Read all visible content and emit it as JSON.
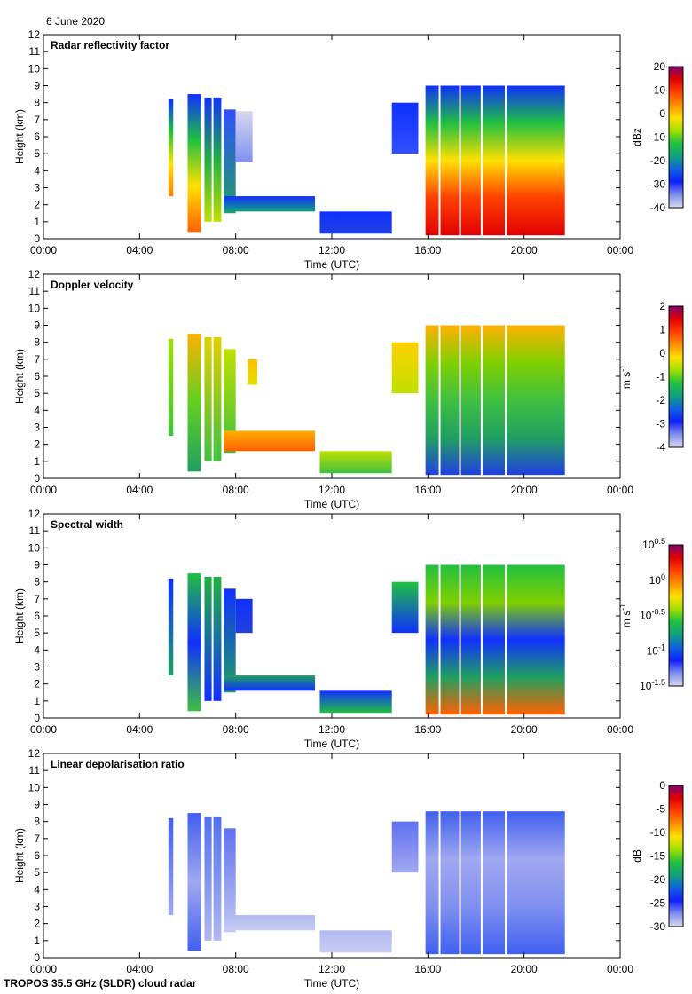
{
  "date_label": "6 June 2020",
  "footer": "TROPOS 35.5 GHz (SLDR) cloud radar",
  "chart_data": [
    {
      "type": "heatmap",
      "title": "Radar reflectivity factor",
      "xlabel": "Time (UTC)",
      "ylabel": "Height (km)",
      "xticks": [
        "00:00",
        "04:00",
        "08:00",
        "12:00",
        "16:00",
        "20:00",
        "00:00"
      ],
      "yticks": [
        "0",
        "1",
        "2",
        "3",
        "4",
        "5",
        "6",
        "7",
        "8",
        "9",
        "10",
        "11",
        "12"
      ],
      "xlim_hours": [
        0,
        24
      ],
      "ylim_km": [
        0,
        12
      ],
      "colorbar": {
        "label": "dBz",
        "ticks": [
          "20",
          "10",
          "0",
          "-10",
          "-20",
          "-30",
          "-40"
        ],
        "range": [
          -40,
          20
        ]
      },
      "echo_regions": [
        {
          "t": [
            5.2,
            5.4
          ],
          "h": [
            2.5,
            8.2
          ],
          "colors": [
            "#1030ff",
            "#20c040",
            "#ffe000",
            "#ff8000"
          ]
        },
        {
          "t": [
            6.0,
            6.6
          ],
          "h": [
            0.4,
            8.5
          ],
          "colors": [
            "#1030ff",
            "#20c040",
            "#ffe000",
            "#ff6000"
          ]
        },
        {
          "t": [
            6.7,
            7.4
          ],
          "h": [
            1.0,
            8.3
          ],
          "colors": [
            "#1030ff",
            "#20b040",
            "#c0e000"
          ]
        },
        {
          "t": [
            7.5,
            8.0
          ],
          "h": [
            1.5,
            7.6
          ],
          "colors": [
            "#3050ff",
            "#20a060"
          ]
        },
        {
          "t": [
            8.0,
            8.7
          ],
          "h": [
            4.5,
            7.5
          ],
          "colors": [
            "#d8d8f0",
            "#8090f0"
          ]
        },
        {
          "t": [
            7.5,
            11.3
          ],
          "h": [
            1.6,
            2.5
          ],
          "colors": [
            "#1030ff",
            "#10a080"
          ]
        },
        {
          "t": [
            11.5,
            14.5
          ],
          "h": [
            0.3,
            1.6
          ],
          "colors": [
            "#1030ff",
            "#2040e0"
          ]
        },
        {
          "t": [
            14.5,
            15.6
          ],
          "h": [
            5.0,
            8.0
          ],
          "colors": [
            "#1030ff",
            "#3050ff"
          ]
        },
        {
          "t": [
            15.9,
            21.7
          ],
          "h": [
            0.2,
            9.0
          ],
          "colors": [
            "#1030ff",
            "#20c040",
            "#ffe000",
            "#ff4000",
            "#e00000"
          ]
        }
      ]
    },
    {
      "type": "heatmap",
      "title": "Doppler velocity",
      "xlabel": "Time (UTC)",
      "ylabel": "Height (km)",
      "xticks": [
        "00:00",
        "04:00",
        "08:00",
        "12:00",
        "16:00",
        "20:00",
        "00:00"
      ],
      "yticks": [
        "0",
        "1",
        "2",
        "3",
        "4",
        "5",
        "6",
        "7",
        "8",
        "9",
        "10",
        "11",
        "12"
      ],
      "xlim_hours": [
        0,
        24
      ],
      "ylim_km": [
        0,
        12
      ],
      "colorbar": {
        "label": "m s-1",
        "label_main": "m s",
        "label_sup": "-1",
        "ticks": [
          "2",
          "1",
          "0",
          "-1",
          "-2",
          "-3",
          "-4"
        ],
        "range": [
          -4,
          2
        ]
      },
      "echo_regions": [
        {
          "t": [
            5.2,
            5.4
          ],
          "h": [
            2.5,
            8.2
          ],
          "colors": [
            "#a0e000",
            "#40c040"
          ]
        },
        {
          "t": [
            6.0,
            6.6
          ],
          "h": [
            0.4,
            8.5
          ],
          "colors": [
            "#ffb000",
            "#60d020",
            "#20a060"
          ]
        },
        {
          "t": [
            6.7,
            7.4
          ],
          "h": [
            1.0,
            8.3
          ],
          "colors": [
            "#e0d000",
            "#40c040"
          ]
        },
        {
          "t": [
            7.5,
            8.0
          ],
          "h": [
            1.5,
            7.6
          ],
          "colors": [
            "#c0e000",
            "#40c040"
          ]
        },
        {
          "t": [
            8.5,
            8.9
          ],
          "h": [
            5.5,
            7.0
          ],
          "colors": [
            "#ffc000",
            "#e0e000"
          ]
        },
        {
          "t": [
            7.5,
            11.3
          ],
          "h": [
            1.6,
            2.8
          ],
          "colors": [
            "#ffb000",
            "#ff6000"
          ]
        },
        {
          "t": [
            11.5,
            14.5
          ],
          "h": [
            0.3,
            1.6
          ],
          "colors": [
            "#c0e000",
            "#40c040"
          ]
        },
        {
          "t": [
            14.5,
            15.6
          ],
          "h": [
            5.0,
            8.0
          ],
          "colors": [
            "#ffd000",
            "#c0e000"
          ]
        },
        {
          "t": [
            15.9,
            21.7
          ],
          "h": [
            0.2,
            9.0
          ],
          "colors": [
            "#ffb000",
            "#80d000",
            "#40c040",
            "#20a060",
            "#2040e0"
          ]
        }
      ]
    },
    {
      "type": "heatmap",
      "title": "Spectral width",
      "xlabel": "Time (UTC)",
      "ylabel": "Height (km)",
      "xticks": [
        "00:00",
        "04:00",
        "08:00",
        "12:00",
        "16:00",
        "20:00",
        "00:00"
      ],
      "yticks": [
        "0",
        "1",
        "2",
        "3",
        "4",
        "5",
        "6",
        "7",
        "8",
        "9",
        "10",
        "11",
        "12"
      ],
      "xlim_hours": [
        0,
        24
      ],
      "ylim_km": [
        0,
        12
      ],
      "colorbar": {
        "label": "m s-1",
        "label_main": "m s",
        "label_sup": "-1",
        "ticks": [
          {
            "base": "10",
            "exp": "0.5"
          },
          {
            "base": "10",
            "exp": "0"
          },
          {
            "base": "10",
            "exp": "-0.5"
          },
          {
            "base": "10",
            "exp": "-1"
          },
          {
            "base": "10",
            "exp": "-1.5"
          }
        ],
        "range": [
          -1.5,
          0.5
        ]
      },
      "echo_regions": [
        {
          "t": [
            5.2,
            5.4
          ],
          "h": [
            2.5,
            8.2
          ],
          "colors": [
            "#1030ff",
            "#20a060"
          ]
        },
        {
          "t": [
            6.0,
            6.6
          ],
          "h": [
            0.4,
            8.5
          ],
          "colors": [
            "#20c040",
            "#1030ff",
            "#40c040"
          ]
        },
        {
          "t": [
            6.7,
            7.4
          ],
          "h": [
            1.0,
            8.3
          ],
          "colors": [
            "#20b040",
            "#1030ff"
          ]
        },
        {
          "t": [
            7.5,
            8.0
          ],
          "h": [
            1.5,
            7.6
          ],
          "colors": [
            "#1030ff",
            "#20a060"
          ]
        },
        {
          "t": [
            8.0,
            8.7
          ],
          "h": [
            5.0,
            7.0
          ],
          "colors": [
            "#1030ff",
            "#2040e0"
          ]
        },
        {
          "t": [
            7.5,
            11.3
          ],
          "h": [
            1.6,
            2.5
          ],
          "colors": [
            "#20a060",
            "#1030ff"
          ]
        },
        {
          "t": [
            11.5,
            14.5
          ],
          "h": [
            0.3,
            1.6
          ],
          "colors": [
            "#1030ff",
            "#20c040"
          ]
        },
        {
          "t": [
            14.5,
            15.6
          ],
          "h": [
            5.0,
            8.0
          ],
          "colors": [
            "#20c040",
            "#1030ff"
          ]
        },
        {
          "t": [
            15.9,
            21.7
          ],
          "h": [
            0.2,
            9.0
          ],
          "colors": [
            "#20c040",
            "#80d000",
            "#1030ff",
            "#20a060",
            "#ff6000"
          ]
        }
      ]
    },
    {
      "type": "heatmap",
      "title": "Linear depolarisation ratio",
      "xlabel": "Time (UTC)",
      "ylabel": "Height (km)",
      "xticks": [
        "00:00",
        "04:00",
        "08:00",
        "12:00",
        "16:00",
        "20:00",
        "00:00"
      ],
      "yticks": [
        "0",
        "1",
        "2",
        "3",
        "4",
        "5",
        "6",
        "7",
        "8",
        "9",
        "10",
        "11",
        "12"
      ],
      "xlim_hours": [
        0,
        24
      ],
      "ylim_km": [
        0,
        12
      ],
      "colorbar": {
        "label": "dB",
        "ticks": [
          "0",
          "-5",
          "-10",
          "-15",
          "-20",
          "-25",
          "-30"
        ],
        "range": [
          -30,
          0
        ]
      },
      "echo_regions": [
        {
          "t": [
            5.2,
            5.4
          ],
          "h": [
            2.5,
            8.2
          ],
          "colors": [
            "#4060f0",
            "#a0a8f0"
          ]
        },
        {
          "t": [
            6.0,
            6.6
          ],
          "h": [
            0.4,
            8.5
          ],
          "colors": [
            "#4060f0",
            "#a0a8f0",
            "#4060f0"
          ]
        },
        {
          "t": [
            6.7,
            7.4
          ],
          "h": [
            1.0,
            8.3
          ],
          "colors": [
            "#5070f0",
            "#b0b8f0"
          ]
        },
        {
          "t": [
            7.5,
            8.0
          ],
          "h": [
            1.5,
            7.6
          ],
          "colors": [
            "#6070f0",
            "#c0c8f0"
          ]
        },
        {
          "t": [
            7.5,
            11.3
          ],
          "h": [
            1.6,
            2.5
          ],
          "colors": [
            "#b0b8f0",
            "#c8cdf4"
          ]
        },
        {
          "t": [
            11.5,
            14.5
          ],
          "h": [
            0.3,
            1.6
          ],
          "colors": [
            "#b0b8f0",
            "#c8cdf4"
          ]
        },
        {
          "t": [
            14.5,
            15.6
          ],
          "h": [
            5.0,
            8.0
          ],
          "colors": [
            "#6070f0",
            "#a0a8f0"
          ]
        },
        {
          "t": [
            15.9,
            21.7
          ],
          "h": [
            0.2,
            8.6
          ],
          "colors": [
            "#4060f0",
            "#a0a8f0",
            "#8090f0",
            "#4060f0"
          ]
        }
      ]
    }
  ],
  "colormap": [
    "#800070",
    "#e00000",
    "#ff4000",
    "#ff9000",
    "#ffe000",
    "#a0e000",
    "#20c040",
    "#10a080",
    "#1060e0",
    "#1020ff",
    "#8090f0",
    "#d8d8f0"
  ]
}
